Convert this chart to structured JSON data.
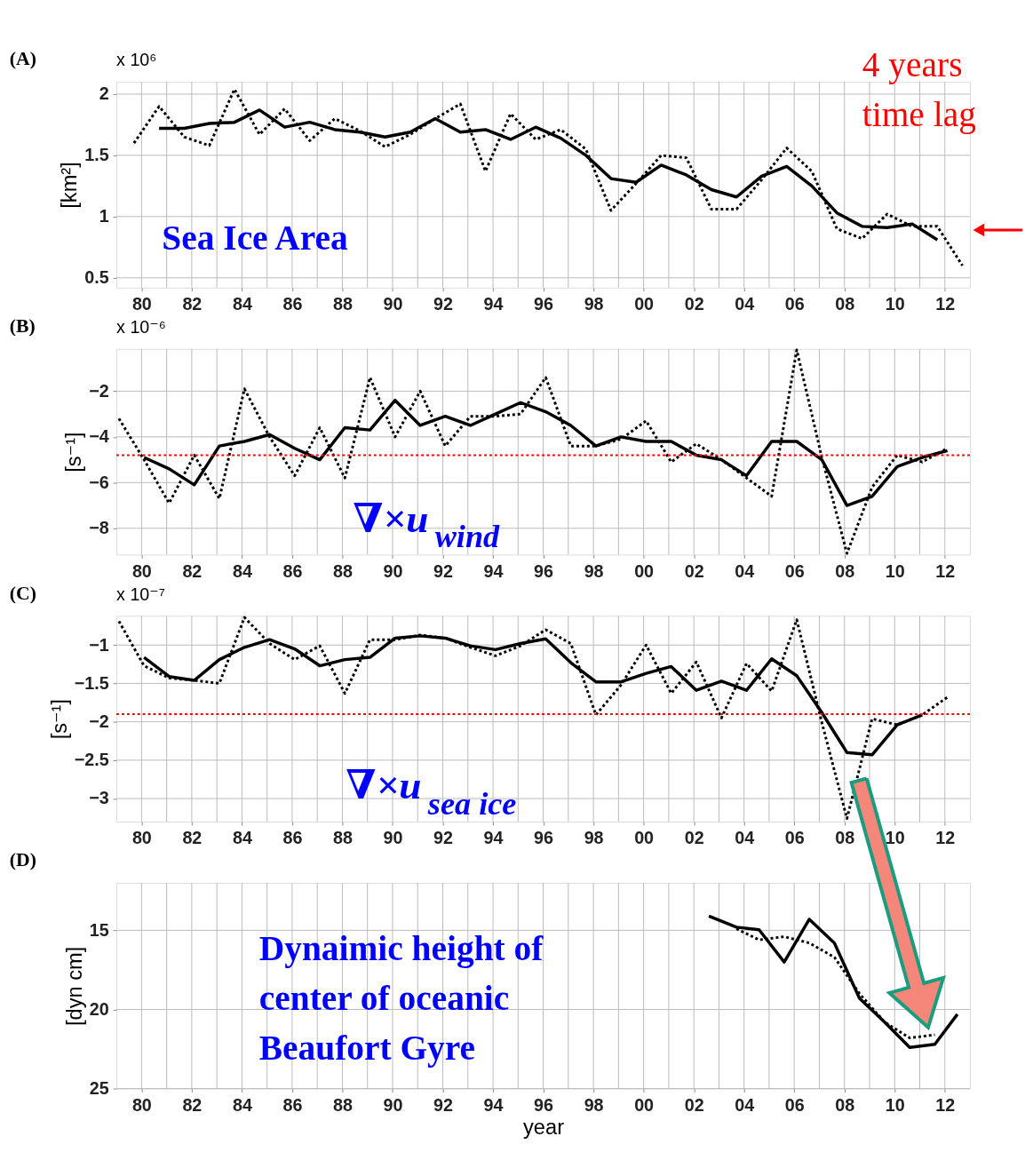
{
  "chart_data": [
    {
      "type": "line",
      "title": "(A)",
      "ylabel": "[km²]",
      "xlim": [
        1979,
        2013
      ],
      "ylim": [
        0.42,
        2.1
      ],
      "yticks": [
        0.5,
        1,
        1.5,
        2
      ],
      "grid": true,
      "xticks": [
        {
          "value": 1980,
          "label": "80"
        },
        {
          "value": 1981,
          "label": null
        },
        {
          "value": 1982,
          "label": "82"
        },
        {
          "value": 1983,
          "label": null
        },
        {
          "value": 1984,
          "label": "84"
        },
        {
          "value": 1985,
          "label": null
        },
        {
          "value": 1986,
          "label": "86"
        },
        {
          "value": 1987,
          "label": null
        },
        {
          "value": 1988,
          "label": "88"
        },
        {
          "value": 1989,
          "label": null
        },
        {
          "value": 1990,
          "label": "90"
        },
        {
          "value": 1991,
          "label": null
        },
        {
          "value": 1992,
          "label": "92"
        },
        {
          "value": 1993,
          "label": null
        },
        {
          "value": 1994,
          "label": "94"
        },
        {
          "value": 1995,
          "label": null
        },
        {
          "value": 1996,
          "label": "96"
        },
        {
          "value": 1997,
          "label": null
        },
        {
          "value": 1998,
          "label": "98"
        },
        {
          "value": 1999,
          "label": null
        },
        {
          "value": 2000,
          "label": "00"
        },
        {
          "value": 2001,
          "label": null
        },
        {
          "value": 2002,
          "label": "02"
        },
        {
          "value": 2003,
          "label": null
        },
        {
          "value": 2004,
          "label": "04"
        },
        {
          "value": 2005,
          "label": null
        },
        {
          "value": 2006,
          "label": "06"
        },
        {
          "value": 2007,
          "label": null
        },
        {
          "value": 2008,
          "label": "08"
        },
        {
          "value": 2009,
          "label": null
        },
        {
          "value": 2010,
          "label": "10"
        },
        {
          "value": 2011,
          "label": null
        },
        {
          "value": 2012,
          "label": "12"
        }
      ],
      "annotations": [
        "x 10⁶",
        "Sea Ice Area",
        "4 years\ntime lag"
      ],
      "series": [
        {
          "color": "#000000",
          "line_style": "dotted",
          "x": [
            1979.7,
            1980.7,
            1981.7,
            1982.7,
            1983.7,
            1984.7,
            1985.7,
            1986.7,
            1987.7,
            1988.7,
            1989.7,
            1990.7,
            1991.7,
            1992.7,
            1993.7,
            1994.7,
            1995.7,
            1996.7,
            1997.7,
            1998.7,
            1999.7,
            2000.7,
            2001.7,
            2002.7,
            2003.7,
            2004.7,
            2005.7,
            2006.7,
            2007.7,
            2008.7,
            2009.7,
            2010.7,
            2011.7,
            2012.7
          ],
          "values": [
            1.6,
            1.9,
            1.65,
            1.58,
            2.04,
            1.67,
            1.88,
            1.62,
            1.8,
            1.7,
            1.57,
            1.67,
            1.8,
            1.92,
            1.37,
            1.84,
            1.63,
            1.71,
            1.55,
            1.05,
            1.27,
            1.5,
            1.48,
            1.06,
            1.06,
            1.3,
            1.56,
            1.37,
            0.9,
            0.82,
            1.02,
            0.92,
            0.92,
            0.6
          ]
        },
        {
          "color": "#000000",
          "line_style": "solid",
          "x": [
            1980.7,
            1981.7,
            1982.7,
            1983.7,
            1984.7,
            1985.7,
            1986.7,
            1987.7,
            1988.7,
            1989.7,
            1990.7,
            1991.7,
            1992.7,
            1993.7,
            1994.7,
            1995.7,
            1996.7,
            1997.7,
            1998.7,
            1999.7,
            2000.7,
            2001.7,
            2002.7,
            2003.7,
            2004.7,
            2005.7,
            2006.7,
            2007.7,
            2008.7,
            2009.7,
            2010.7,
            2011.7
          ],
          "values": [
            1.72,
            1.72,
            1.76,
            1.77,
            1.87,
            1.73,
            1.77,
            1.71,
            1.69,
            1.65,
            1.69,
            1.8,
            1.69,
            1.71,
            1.63,
            1.73,
            1.64,
            1.5,
            1.31,
            1.28,
            1.42,
            1.34,
            1.22,
            1.16,
            1.33,
            1.41,
            1.25,
            1.03,
            0.92,
            0.91,
            0.94,
            0.81
          ]
        }
      ]
    },
    {
      "type": "line",
      "title": "(B)",
      "ylabel": "[s⁻¹]",
      "xlim": [
        1979,
        2013
      ],
      "ylim": [
        -9.15,
        -0.15
      ],
      "yticks": [
        -8,
        -6,
        -4,
        -2
      ],
      "grid": true,
      "xticks": [
        {
          "value": 1980,
          "label": "80"
        },
        {
          "value": 1981,
          "label": null
        },
        {
          "value": 1982,
          "label": "82"
        },
        {
          "value": 1983,
          "label": null
        },
        {
          "value": 1984,
          "label": "84"
        },
        {
          "value": 1985,
          "label": null
        },
        {
          "value": 1986,
          "label": "86"
        },
        {
          "value": 1987,
          "label": null
        },
        {
          "value": 1988,
          "label": "88"
        },
        {
          "value": 1989,
          "label": null
        },
        {
          "value": 1990,
          "label": "90"
        },
        {
          "value": 1991,
          "label": null
        },
        {
          "value": 1992,
          "label": "92"
        },
        {
          "value": 1993,
          "label": null
        },
        {
          "value": 1994,
          "label": "94"
        },
        {
          "value": 1995,
          "label": null
        },
        {
          "value": 1996,
          "label": "96"
        },
        {
          "value": 1997,
          "label": null
        },
        {
          "value": 1998,
          "label": "98"
        },
        {
          "value": 1999,
          "label": null
        },
        {
          "value": 2000,
          "label": "00"
        },
        {
          "value": 2001,
          "label": null
        },
        {
          "value": 2002,
          "label": "02"
        },
        {
          "value": 2003,
          "label": null
        },
        {
          "value": 2004,
          "label": "04"
        },
        {
          "value": 2005,
          "label": null
        },
        {
          "value": 2006,
          "label": "06"
        },
        {
          "value": 2007,
          "label": null
        },
        {
          "value": 2008,
          "label": "08"
        },
        {
          "value": 2009,
          "label": null
        },
        {
          "value": 2010,
          "label": "10"
        },
        {
          "value": 2011,
          "label": null
        },
        {
          "value": 2012,
          "label": "12"
        }
      ],
      "annotations": [
        "x 10⁻⁶",
        "∇×u$_{wind}$"
      ],
      "ref_lines": [
        {
          "axis": "y",
          "value": -4.8,
          "color": "#ff0000",
          "line_style": "dotted"
        }
      ],
      "series": [
        {
          "color": "#000000",
          "line_style": "dotted",
          "x": [
            1979.1,
            1980.1,
            1981.1,
            1982.1,
            1983.1,
            1984.1,
            1985.1,
            1986.1,
            1987.1,
            1988.1,
            1989.1,
            1990.1,
            1991.1,
            1992.1,
            1993.1,
            1994.1,
            1995.1,
            1996.1,
            1997.1,
            1998.1,
            1999.1,
            2000.1,
            2001.1,
            2002.1,
            2003.1,
            2004.1,
            2005.1,
            2006.1,
            2007.1,
            2008.1,
            2009.1,
            2010.1,
            2011.1,
            2012.1
          ],
          "values": [
            -3.2,
            -5.0,
            -6.9,
            -4.8,
            -6.7,
            -1.9,
            -4.0,
            -5.7,
            -3.6,
            -5.8,
            -1.4,
            -4.0,
            -2.0,
            -4.4,
            -3.1,
            -3.1,
            -3.0,
            -1.4,
            -4.4,
            -4.4,
            -4.1,
            -3.3,
            -5.1,
            -4.3,
            -5.0,
            -5.8,
            -6.6,
            -0.2,
            -4.9,
            -9.1,
            -6.2,
            -4.8,
            -5.1,
            -4.5
          ]
        },
        {
          "color": "#000000",
          "line_style": "solid",
          "x": [
            1980.1,
            1981.1,
            1982.1,
            1983.1,
            1984.1,
            1985.1,
            1986.1,
            1987.1,
            1988.1,
            1989.1,
            1990.1,
            1991.1,
            1992.1,
            1993.1,
            1994.1,
            1995.1,
            1996.1,
            1997.1,
            1998.1,
            1999.1,
            2000.1,
            2001.1,
            2002.1,
            2003.1,
            2004.1,
            2005.1,
            2006.1,
            2007.1,
            2008.1,
            2009.1,
            2010.1,
            2011.1,
            2012.1
          ],
          "values": [
            -4.9,
            -5.4,
            -6.1,
            -4.4,
            -4.2,
            -3.9,
            -4.5,
            -5.0,
            -3.6,
            -3.7,
            -2.4,
            -3.5,
            -3.1,
            -3.5,
            -3.0,
            -2.5,
            -2.9,
            -3.5,
            -4.4,
            -4.0,
            -4.2,
            -4.2,
            -4.8,
            -5.0,
            -5.7,
            -4.2,
            -4.2,
            -5.0,
            -7.0,
            -6.6,
            -5.3,
            -4.9,
            -4.6
          ]
        }
      ]
    },
    {
      "type": "line",
      "title": "(C)",
      "ylabel": "[s⁻¹]",
      "xlim": [
        1979,
        2013
      ],
      "ylim": [
        -3.3,
        -0.62
      ],
      "yticks": [
        -3,
        -2.5,
        -2,
        -1.5,
        -1
      ],
      "grid": true,
      "xticks": [
        {
          "value": 1980,
          "label": "80"
        },
        {
          "value": 1981,
          "label": null
        },
        {
          "value": 1982,
          "label": "82"
        },
        {
          "value": 1983,
          "label": null
        },
        {
          "value": 1984,
          "label": "84"
        },
        {
          "value": 1985,
          "label": null
        },
        {
          "value": 1986,
          "label": "86"
        },
        {
          "value": 1987,
          "label": null
        },
        {
          "value": 1988,
          "label": "88"
        },
        {
          "value": 1989,
          "label": null
        },
        {
          "value": 1990,
          "label": "90"
        },
        {
          "value": 1991,
          "label": null
        },
        {
          "value": 1992,
          "label": "92"
        },
        {
          "value": 1993,
          "label": null
        },
        {
          "value": 1994,
          "label": "94"
        },
        {
          "value": 1995,
          "label": null
        },
        {
          "value": 1996,
          "label": "96"
        },
        {
          "value": 1997,
          "label": null
        },
        {
          "value": 1998,
          "label": "98"
        },
        {
          "value": 1999,
          "label": null
        },
        {
          "value": 2000,
          "label": "00"
        },
        {
          "value": 2001,
          "label": null
        },
        {
          "value": 2002,
          "label": "02"
        },
        {
          "value": 2003,
          "label": null
        },
        {
          "value": 2004,
          "label": "04"
        },
        {
          "value": 2005,
          "label": null
        },
        {
          "value": 2006,
          "label": "06"
        },
        {
          "value": 2007,
          "label": null
        },
        {
          "value": 2008,
          "label": "08"
        },
        {
          "value": 2009,
          "label": null
        },
        {
          "value": 2010,
          "label": "10"
        },
        {
          "value": 2011,
          "label": null
        },
        {
          "value": 2012,
          "label": "12"
        }
      ],
      "annotations": [
        "x 10⁻⁷",
        "∇×u$_{sea ice}$"
      ],
      "ref_lines": [
        {
          "axis": "y",
          "value": -1.9,
          "color": "#ff0000",
          "line_style": "dotted"
        }
      ],
      "series": [
        {
          "color": "#000000",
          "line_style": "dotted",
          "x": [
            1979.1,
            1980.1,
            1981.1,
            1982.1,
            1983.1,
            1984.1,
            1985.1,
            1986.1,
            1987.1,
            1988.1,
            1989.1,
            1990.1,
            1991.1,
            1992.1,
            1993.1,
            1994.1,
            1995.1,
            1996.1,
            1997.1,
            1998.1,
            1999.1,
            2000.1,
            2001.1,
            2002.1,
            2003.1,
            2004.1,
            2005.1,
            2006.1,
            2007.1,
            2008.1,
            2009.1,
            2010.1,
            2011.1,
            2012.1
          ],
          "values": [
            -0.69,
            -1.27,
            -1.43,
            -1.46,
            -1.5,
            -0.64,
            -0.98,
            -1.19,
            -1.01,
            -1.63,
            -0.93,
            -0.93,
            -0.87,
            -0.91,
            -1.03,
            -1.14,
            -1.01,
            -0.8,
            -0.98,
            -1.91,
            -1.52,
            -1.0,
            -1.63,
            -1.22,
            -1.95,
            -1.24,
            -1.6,
            -0.67,
            -2.01,
            -3.26,
            -1.96,
            -2.04,
            -1.91,
            -1.68
          ]
        },
        {
          "color": "#000000",
          "line_style": "solid",
          "x": [
            1980.1,
            1981.1,
            1982.1,
            1983.1,
            1984.1,
            1985.1,
            1986.1,
            1987.1,
            1988.1,
            1989.1,
            1990.1,
            1991.1,
            1992.1,
            1993.1,
            1994.1,
            1995.1,
            1996.1,
            1997.1,
            1998.1,
            1999.1,
            2000.1,
            2001.1,
            2002.1,
            2003.1,
            2004.1,
            2005.1,
            2006.1,
            2007.1,
            2008.1,
            2009.1,
            2010.1,
            2011.1
          ],
          "values": [
            -1.16,
            -1.41,
            -1.46,
            -1.19,
            -1.03,
            -0.93,
            -1.05,
            -1.27,
            -1.19,
            -1.16,
            -0.91,
            -0.88,
            -0.91,
            -1.01,
            -1.06,
            -0.98,
            -0.92,
            -1.23,
            -1.48,
            -1.48,
            -1.37,
            -1.28,
            -1.59,
            -1.47,
            -1.59,
            -1.18,
            -1.4,
            -1.88,
            -2.4,
            -2.43,
            -2.04,
            -1.91
          ]
        }
      ]
    },
    {
      "type": "line",
      "title": "(D)",
      "xlabel": "year",
      "ylabel": "[dyn cm]",
      "xlim": [
        1979,
        2013
      ],
      "ylim": [
        25,
        12
      ],
      "yticks": [
        15,
        20,
        25
      ],
      "grid": true,
      "xticks": [
        {
          "value": 1980,
          "label": "80"
        },
        {
          "value": 1981,
          "label": null
        },
        {
          "value": 1982,
          "label": "82"
        },
        {
          "value": 1983,
          "label": null
        },
        {
          "value": 1984,
          "label": "84"
        },
        {
          "value": 1985,
          "label": null
        },
        {
          "value": 1986,
          "label": "86"
        },
        {
          "value": 1987,
          "label": null
        },
        {
          "value": 1988,
          "label": "88"
        },
        {
          "value": 1989,
          "label": null
        },
        {
          "value": 1990,
          "label": "90"
        },
        {
          "value": 1991,
          "label": null
        },
        {
          "value": 1992,
          "label": "92"
        },
        {
          "value": 1993,
          "label": null
        },
        {
          "value": 1994,
          "label": "94"
        },
        {
          "value": 1995,
          "label": null
        },
        {
          "value": 1996,
          "label": "96"
        },
        {
          "value": 1997,
          "label": null
        },
        {
          "value": 1998,
          "label": "98"
        },
        {
          "value": 1999,
          "label": null
        },
        {
          "value": 2000,
          "label": "00"
        },
        {
          "value": 2001,
          "label": null
        },
        {
          "value": 2002,
          "label": "02"
        },
        {
          "value": 2003,
          "label": null
        },
        {
          "value": 2004,
          "label": "04"
        },
        {
          "value": 2005,
          "label": null
        },
        {
          "value": 2006,
          "label": "06"
        },
        {
          "value": 2007,
          "label": null
        },
        {
          "value": 2008,
          "label": "08"
        },
        {
          "value": 2009,
          "label": null
        },
        {
          "value": 2010,
          "label": "10"
        },
        {
          "value": 2011,
          "label": null
        },
        {
          "value": 2012,
          "label": "12"
        }
      ],
      "annotations": [
        "Dynaimic height of\ncenter of oceanic\nBeaufort Gyre"
      ],
      "series": [
        {
          "color": "#000000",
          "line_style": "dotted",
          "x": [
            2003.7,
            2004.6,
            2005.6,
            2006.6,
            2007.6,
            2008.6,
            2009.6,
            2010.6,
            2011.6
          ],
          "values": [
            14.9,
            15.6,
            15.4,
            15.8,
            16.7,
            19.0,
            20.8,
            21.8,
            21.6
          ]
        },
        {
          "color": "#000000",
          "line_style": "solid",
          "x": [
            2002.6,
            2003.7,
            2004.6,
            2005.6,
            2006.6,
            2007.6,
            2008.6,
            2009.6,
            2010.6,
            2011.6,
            2012.5
          ],
          "values": [
            14.1,
            14.8,
            14.96,
            17.0,
            14.3,
            15.8,
            19.3,
            20.8,
            22.4,
            22.2,
            20.3
          ]
        }
      ]
    }
  ]
}
